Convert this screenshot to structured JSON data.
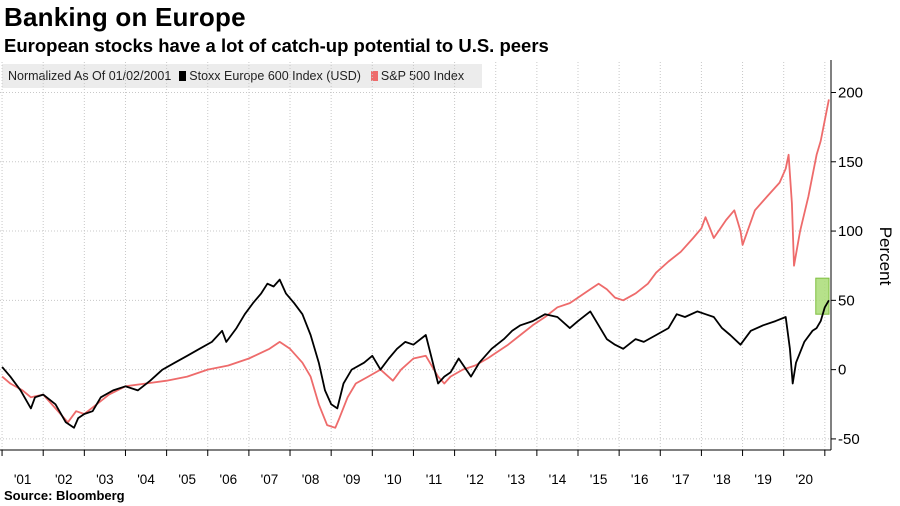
{
  "title": "Banking on Europe",
  "subtitle": "European stocks have a lot of catch-up potential to U.S. peers",
  "source": "Source: Bloomberg",
  "legend": {
    "normalized": "Normalized As Of 01/02/2001",
    "items": [
      {
        "label": "Stoxx Europe 600 Index (USD)",
        "color": "#000000"
      },
      {
        "label": "S&P 500 Index",
        "color": "#ee6b6b"
      }
    ]
  },
  "colors": {
    "highlight_fill": "#a9dc76",
    "highlight_stroke": "#7fbf3f",
    "grid": "#c8c8c8"
  },
  "chart_data": {
    "type": "line",
    "ylabel": "Percent",
    "ylim": [
      -58,
      222
    ],
    "yticks": [
      -50,
      0,
      50,
      100,
      150,
      200
    ],
    "xlim": [
      2000.95,
      2021.15
    ],
    "xtick_labels": [
      "'01",
      "'02",
      "'03",
      "'04",
      "'05",
      "'06",
      "'07",
      "'08",
      "'09",
      "'10",
      "'11",
      "'12",
      "'13",
      "'14",
      "'15",
      "'16",
      "'17",
      "'18",
      "'19",
      "'20"
    ],
    "grid": true,
    "highlight": {
      "x_range": [
        2020.78,
        2021.25
      ],
      "y_range": [
        40,
        66
      ]
    },
    "series": [
      {
        "name": "Stoxx Europe 600 Index (USD)",
        "color": "#000000",
        "x": [
          2001.0,
          2001.2,
          2001.45,
          2001.7,
          2001.8,
          2002.0,
          2002.3,
          2002.55,
          2002.75,
          2002.85,
          2003.0,
          2003.2,
          2003.4,
          2003.7,
          2004.0,
          2004.3,
          2004.6,
          2004.9,
          2005.2,
          2005.5,
          2005.8,
          2006.1,
          2006.35,
          2006.45,
          2006.7,
          2006.9,
          2007.1,
          2007.3,
          2007.45,
          2007.6,
          2007.75,
          2007.9,
          2008.1,
          2008.3,
          2008.5,
          2008.7,
          2008.85,
          2009.0,
          2009.15,
          2009.3,
          2009.5,
          2009.8,
          2010.0,
          2010.2,
          2010.4,
          2010.6,
          2010.8,
          2011.0,
          2011.3,
          2011.6,
          2011.75,
          2011.9,
          2012.1,
          2012.4,
          2012.6,
          2012.9,
          2013.2,
          2013.4,
          2013.6,
          2013.9,
          2014.2,
          2014.5,
          2014.8,
          2015.0,
          2015.3,
          2015.5,
          2015.7,
          2015.9,
          2016.1,
          2016.4,
          2016.6,
          2016.9,
          2017.2,
          2017.4,
          2017.6,
          2017.9,
          2018.1,
          2018.3,
          2018.5,
          2018.7,
          2018.95,
          2019.2,
          2019.5,
          2019.8,
          2020.05,
          2020.15,
          2020.22,
          2020.3,
          2020.5,
          2020.7,
          2020.8,
          2020.9,
          2021.0,
          2021.1
        ],
        "values": [
          2,
          -5,
          -15,
          -28,
          -20,
          -18,
          -25,
          -38,
          -42,
          -35,
          -32,
          -30,
          -20,
          -15,
          -12,
          -15,
          -8,
          0,
          5,
          10,
          15,
          20,
          28,
          20,
          30,
          40,
          48,
          55,
          62,
          60,
          65,
          55,
          48,
          40,
          25,
          5,
          -15,
          -25,
          -28,
          -10,
          0,
          5,
          10,
          0,
          8,
          15,
          20,
          18,
          25,
          -10,
          -5,
          -2,
          8,
          -5,
          5,
          15,
          22,
          28,
          32,
          35,
          40,
          38,
          30,
          35,
          42,
          32,
          22,
          18,
          15,
          22,
          20,
          25,
          30,
          40,
          38,
          42,
          40,
          38,
          30,
          25,
          18,
          28,
          32,
          35,
          38,
          15,
          -10,
          5,
          20,
          28,
          30,
          35,
          45,
          50
        ]
      },
      {
        "name": "S&P 500 Index",
        "color": "#ee6b6b",
        "x": [
          2001.0,
          2001.2,
          2001.5,
          2001.7,
          2002.0,
          2002.3,
          2002.6,
          2002.8,
          2003.0,
          2003.3,
          2003.6,
          2004.0,
          2004.5,
          2005.0,
          2005.5,
          2006.0,
          2006.5,
          2007.0,
          2007.5,
          2007.75,
          2008.0,
          2008.3,
          2008.5,
          2008.7,
          2008.9,
          2009.1,
          2009.2,
          2009.4,
          2009.6,
          2009.9,
          2010.2,
          2010.5,
          2010.7,
          2011.0,
          2011.3,
          2011.6,
          2011.75,
          2011.9,
          2012.2,
          2012.5,
          2012.8,
          2013.0,
          2013.3,
          2013.6,
          2013.9,
          2014.2,
          2014.5,
          2014.8,
          2015.0,
          2015.3,
          2015.5,
          2015.7,
          2015.9,
          2016.1,
          2016.4,
          2016.7,
          2016.9,
          2017.2,
          2017.5,
          2017.8,
          2018.0,
          2018.1,
          2018.3,
          2018.6,
          2018.8,
          2018.95,
          2019.0,
          2019.3,
          2019.6,
          2019.9,
          2020.05,
          2020.12,
          2020.2,
          2020.25,
          2020.4,
          2020.6,
          2020.7,
          2020.8,
          2020.9,
          2021.0,
          2021.1
        ],
        "values": [
          -5,
          -10,
          -15,
          -20,
          -18,
          -28,
          -38,
          -30,
          -32,
          -25,
          -18,
          -12,
          -10,
          -8,
          -5,
          0,
          3,
          8,
          15,
          20,
          15,
          5,
          -5,
          -25,
          -40,
          -42,
          -35,
          -20,
          -10,
          -5,
          0,
          -8,
          0,
          8,
          10,
          -5,
          -10,
          -5,
          0,
          3,
          8,
          12,
          18,
          25,
          32,
          38,
          45,
          48,
          52,
          58,
          62,
          58,
          52,
          50,
          55,
          62,
          70,
          78,
          85,
          95,
          102,
          110,
          95,
          108,
          115,
          100,
          90,
          115,
          125,
          135,
          145,
          155,
          120,
          75,
          100,
          125,
          140,
          155,
          165,
          180,
          195
        ]
      }
    ]
  }
}
